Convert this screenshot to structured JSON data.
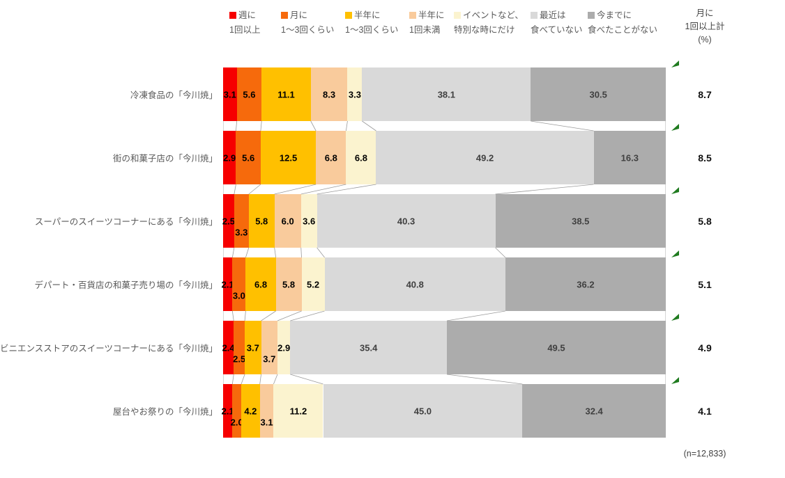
{
  "chart_data": {
    "type": "bar",
    "subtype": "horizontal-stacked-100pct",
    "title": "",
    "legend_position": "top",
    "unit": "%",
    "axis": {
      "x_range": [
        0,
        100
      ],
      "grid": false
    },
    "categories": [
      "冷凍食品の「今川焼」",
      "街の和菓子店の「今川焼」",
      "スーパーのスイーツコーナーにある「今川焼」",
      "デパート・百貨店の和菓子売り場の「今川焼」",
      "コンビニエンスストアのスイーツコーナーにある「今川焼」",
      "屋台やお祭りの「今川焼」"
    ],
    "series": [
      {
        "name": "週に1回以上",
        "label_lines": [
          "週に",
          "1回以上"
        ],
        "color": "#F60000",
        "label_color": "#000000",
        "values": [
          "3.1",
          "2.9",
          "2.5",
          "2.1",
          "2.4",
          "2.1"
        ]
      },
      {
        "name": "月に1〜3回くらい",
        "label_lines": [
          "月に",
          "1〜3回くらい"
        ],
        "color": "#F66A0C",
        "label_color": "#000000",
        "values": [
          "5.6",
          "5.6",
          "3.3",
          "3.0",
          "2.5",
          "2.0"
        ]
      },
      {
        "name": "半年に1〜3回くらい",
        "label_lines": [
          "半年に",
          "1〜3回くらい"
        ],
        "color": "#FFC000",
        "label_color": "#000000",
        "values": [
          "11.1",
          "12.5",
          "5.8",
          "6.8",
          "3.7",
          "4.2"
        ]
      },
      {
        "name": "半年に1回未満",
        "label_lines": [
          "半年に",
          "1回未満"
        ],
        "color": "#F9CB9C",
        "label_color": "#000000",
        "values": [
          "8.3",
          "6.8",
          "6.0",
          "5.8",
          "3.7",
          "3.1"
        ]
      },
      {
        "name": "イベントなど、特別な時にだけ",
        "label_lines": [
          "イベントなど、",
          "特別な時にだけ"
        ],
        "color": "#FBF3CF",
        "label_color": "#000000",
        "values": [
          "3.3",
          "6.8",
          "3.6",
          "5.2",
          "2.9",
          "11.2"
        ]
      },
      {
        "name": "最近は食べていない",
        "label_lines": [
          "最近は",
          "食べていない"
        ],
        "color": "#D9D9D9",
        "label_color": "#404040",
        "values": [
          "38.1",
          "49.2",
          "40.3",
          "40.8",
          "35.4",
          "45.0"
        ]
      },
      {
        "name": "今までに食べたことがない",
        "label_lines": [
          "今までに",
          "食べたことがない"
        ],
        "color": "#ACACAC",
        "label_color": "#404040",
        "values": [
          "30.5",
          "16.3",
          "38.5",
          "36.2",
          "49.5",
          "32.4"
        ]
      }
    ],
    "staggered_labels_by_row": [
      [],
      [],
      [
        1
      ],
      [
        1
      ],
      [
        1,
        3
      ],
      [
        1,
        3
      ]
    ],
    "totals": {
      "header_lines": [
        "月に",
        "1回以上計",
        "(%)"
      ],
      "values": [
        "8.7",
        "8.5",
        "5.8",
        "5.1",
        "4.9",
        "4.1"
      ]
    },
    "marker": {
      "meaning": "significance-marker",
      "color": "#1F7B1F"
    },
    "connector_line_color": "#9A9A9A",
    "n_label": "(n=12,833)"
  }
}
